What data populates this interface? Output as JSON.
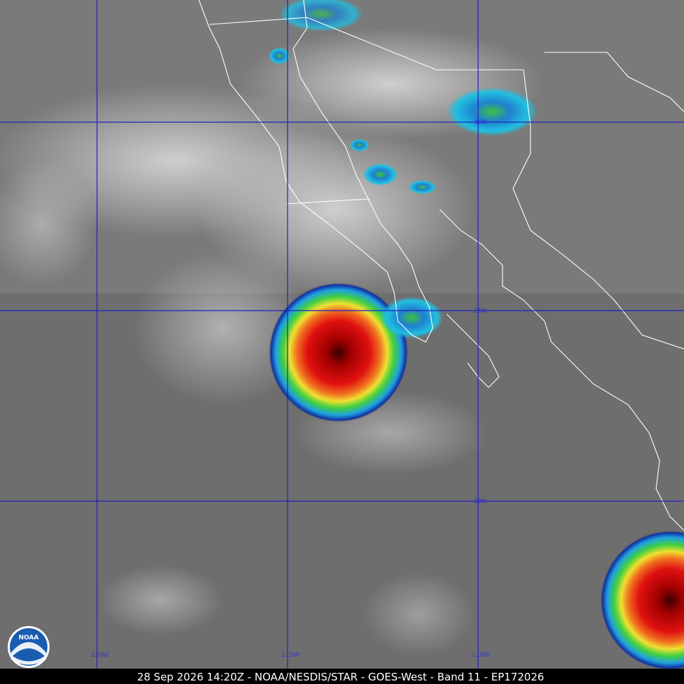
{
  "caption": "28 Sep 2026 14:20Z - NOAA/NESDIS/STAR - GOES-West - Band 11 - EP172026",
  "logo": "NOAA",
  "grid_labels": {
    "longitude": [
      "120W",
      "115W",
      "110W"
    ],
    "latitude": [
      "30N",
      "25N",
      "20N"
    ]
  }
}
